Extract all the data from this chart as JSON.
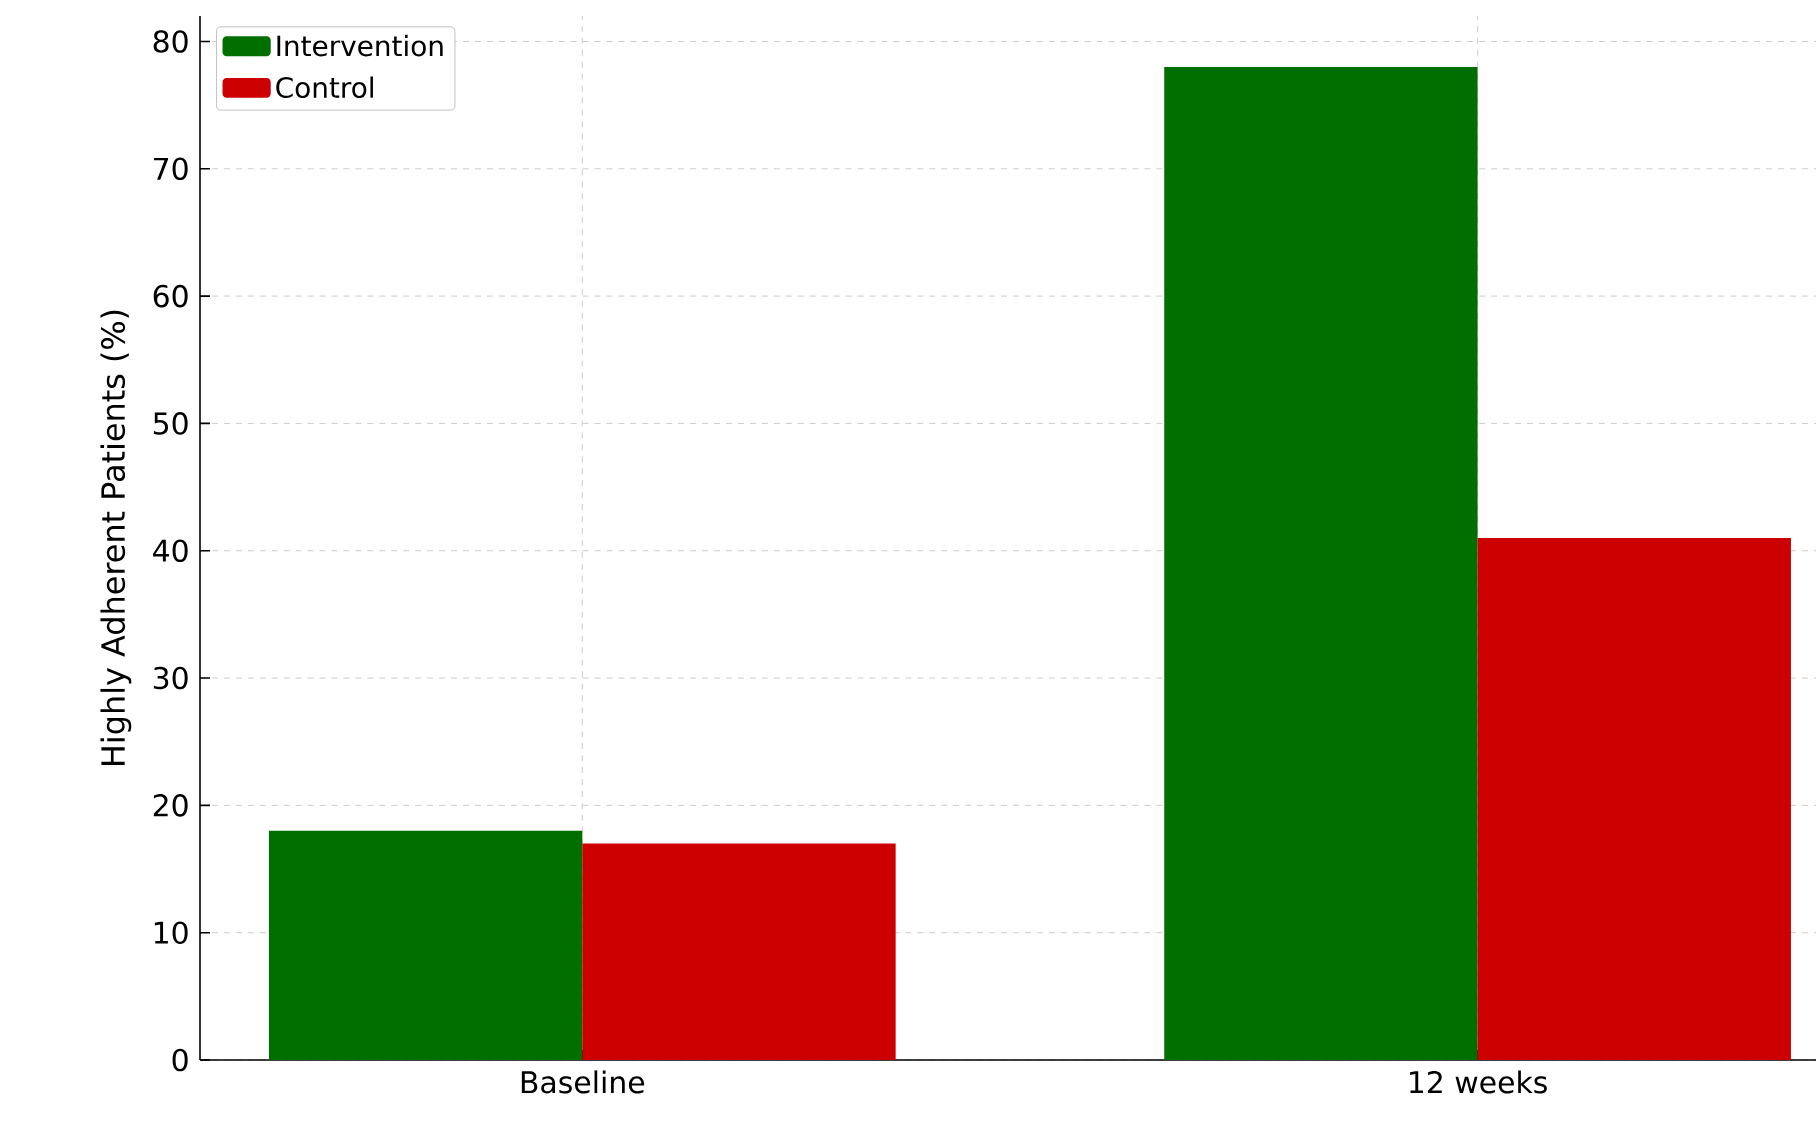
{
  "chart_data": {
    "type": "bar",
    "ylabel": "Highly Adherent Patients (%)",
    "categories": [
      "Baseline",
      "12 weeks"
    ],
    "series": [
      {
        "name": "Intervention",
        "color": "#006f00",
        "values": [
          18,
          78
        ]
      },
      {
        "name": "Control",
        "color": "#cc0000",
        "values": [
          17,
          41
        ]
      }
    ],
    "ylim": [
      0,
      82
    ],
    "yticks": [
      0,
      10,
      20,
      30,
      40,
      50,
      60,
      70,
      80
    ],
    "grid": true,
    "legend": "top left"
  }
}
